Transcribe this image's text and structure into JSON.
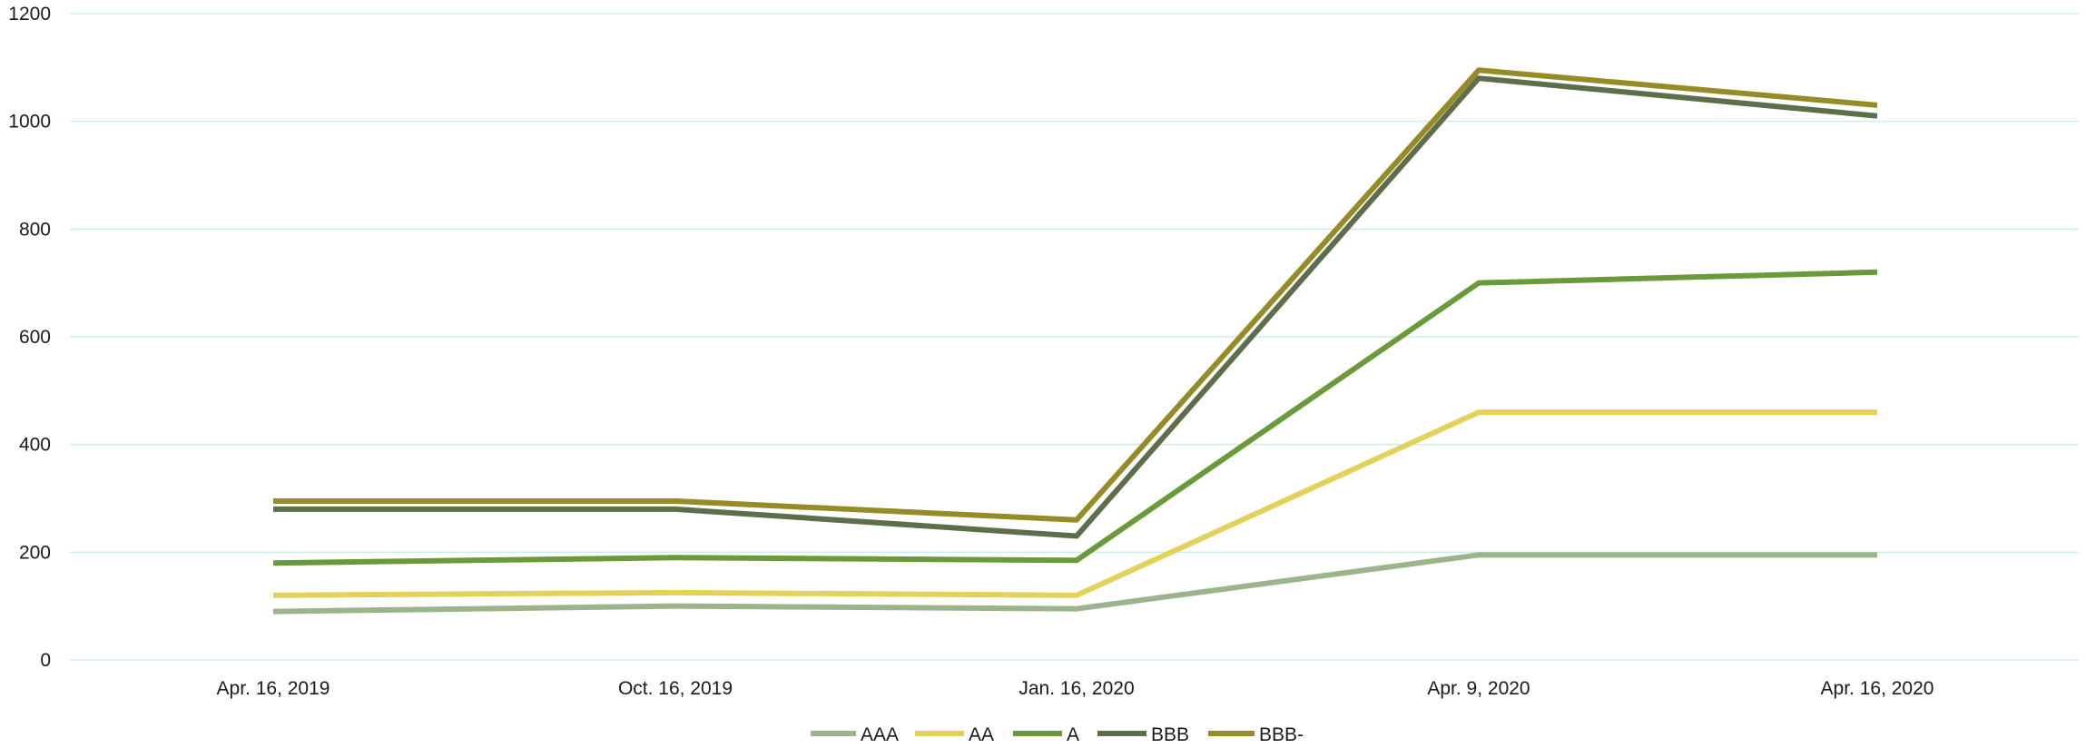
{
  "chart_data": {
    "type": "line",
    "title": "",
    "xlabel": "",
    "ylabel": "",
    "categories": [
      "Apr. 16, 2019",
      "Oct. 16, 2019",
      "Jan. 16, 2020",
      "Apr. 9, 2020",
      "Apr. 16, 2020"
    ],
    "ylim": [
      0,
      1200
    ],
    "yticks": [
      0,
      200,
      400,
      600,
      800,
      1000,
      1200
    ],
    "grid": true,
    "legend_position": "bottom",
    "series": [
      {
        "name": "AAA",
        "color": "#9bb48c",
        "values": [
          90,
          100,
          95,
          195,
          195
        ]
      },
      {
        "name": "AA",
        "color": "#e3d25a",
        "values": [
          120,
          125,
          120,
          460,
          460
        ]
      },
      {
        "name": "A",
        "color": "#6a9a3a",
        "values": [
          180,
          190,
          185,
          700,
          720
        ]
      },
      {
        "name": "BBB",
        "color": "#5d6e4a",
        "values": [
          280,
          280,
          230,
          1080,
          1010
        ]
      },
      {
        "name": "BBB-",
        "color": "#958c28",
        "values": [
          295,
          295,
          260,
          1095,
          1030
        ]
      }
    ],
    "gridline_color": "#c8f0e6"
  }
}
